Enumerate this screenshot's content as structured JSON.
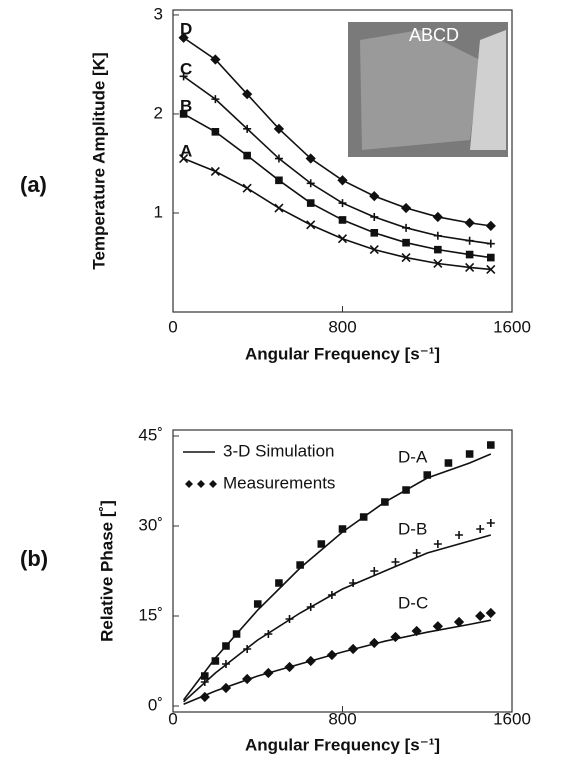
{
  "chart_data": [
    {
      "type": "line",
      "panel_label": "(a)",
      "ylabel": "Temperature Amplitude [K]",
      "xlabel": "Angular Frequency [s⁻¹]",
      "xlim": [
        0,
        1600
      ],
      "xticks": [
        0,
        800,
        1600
      ],
      "ylim": [
        0,
        3.05
      ],
      "yticks": [
        1,
        2,
        3
      ],
      "inset_label": "ABCD",
      "series": [
        {
          "name": "A",
          "color": "#111111",
          "line": true,
          "marker": "x",
          "x": [
            50,
            200,
            350,
            500,
            650,
            800,
            950,
            1100,
            1250,
            1400,
            1500
          ],
          "values": [
            1.55,
            1.42,
            1.25,
            1.05,
            0.88,
            0.74,
            0.63,
            0.55,
            0.49,
            0.45,
            0.43
          ]
        },
        {
          "name": "B",
          "color": "#111111",
          "line": true,
          "marker": "square",
          "x": [
            50,
            200,
            350,
            500,
            650,
            800,
            950,
            1100,
            1250,
            1400,
            1500
          ],
          "values": [
            2.0,
            1.82,
            1.58,
            1.33,
            1.1,
            0.93,
            0.8,
            0.7,
            0.63,
            0.58,
            0.55
          ]
        },
        {
          "name": "C",
          "color": "#111111",
          "line": true,
          "marker": "plus",
          "x": [
            50,
            200,
            350,
            500,
            650,
            800,
            950,
            1100,
            1250,
            1400,
            1500
          ],
          "values": [
            2.38,
            2.15,
            1.85,
            1.55,
            1.3,
            1.1,
            0.96,
            0.85,
            0.77,
            0.72,
            0.69
          ]
        },
        {
          "name": "D",
          "color": "#111111",
          "line": true,
          "marker": "diamond",
          "x": [
            50,
            200,
            350,
            500,
            650,
            800,
            950,
            1100,
            1250,
            1400,
            1500
          ],
          "values": [
            2.77,
            2.55,
            2.2,
            1.85,
            1.55,
            1.33,
            1.17,
            1.05,
            0.96,
            0.9,
            0.87
          ]
        }
      ]
    },
    {
      "type": "line",
      "panel_label": "(b)",
      "ylabel": "Relative Phase [˚]",
      "xlabel": "Angular Frequency [s⁻¹]",
      "xlim": [
        0,
        1600
      ],
      "xticks": [
        0,
        800,
        1600
      ],
      "ylim": [
        -1,
        46
      ],
      "yticks": [
        {
          "value": 0,
          "label": "0˚"
        },
        {
          "value": 15,
          "label": "15˚"
        },
        {
          "value": 30,
          "label": "30˚"
        },
        {
          "value": 45,
          "label": "45˚"
        }
      ],
      "legend": [
        {
          "name": "3-D Simulation",
          "line": true
        },
        {
          "name": "Measurements",
          "marker": "diamond"
        }
      ],
      "series": [
        {
          "name": "D-A",
          "color": "#111111",
          "line": true,
          "x": [
            50,
            200,
            400,
            600,
            800,
            1000,
            1200,
            1400,
            1500
          ],
          "values": [
            1,
            8,
            16,
            23,
            29,
            34,
            38,
            40.5,
            42
          ]
        },
        {
          "name": "D-B",
          "color": "#111111",
          "line": true,
          "x": [
            50,
            200,
            400,
            600,
            800,
            1000,
            1200,
            1400,
            1500
          ],
          "values": [
            0.7,
            5.5,
            11,
            15.5,
            19.5,
            22.5,
            25.5,
            27.5,
            28.5
          ]
        },
        {
          "name": "D-C",
          "color": "#111111",
          "line": true,
          "x": [
            50,
            200,
            400,
            600,
            800,
            1000,
            1200,
            1400,
            1500
          ],
          "values": [
            0.3,
            2.5,
            5,
            7,
            9,
            10.8,
            12.3,
            13.6,
            14.3
          ]
        },
        {
          "color": "#111111",
          "marker": "square",
          "x": [
            150,
            200,
            250,
            300,
            400,
            500,
            600,
            700,
            800,
            900,
            1000,
            1100,
            1200,
            1300,
            1400,
            1500
          ],
          "values": [
            5,
            7.5,
            10,
            12,
            17,
            20.5,
            23.5,
            27,
            29.5,
            31.5,
            34,
            36,
            38.5,
            40.5,
            42,
            43.5
          ]
        },
        {
          "color": "#111111",
          "marker": "plus",
          "x": [
            150,
            250,
            350,
            450,
            550,
            650,
            750,
            850,
            950,
            1050,
            1150,
            1250,
            1350,
            1450,
            1500
          ],
          "values": [
            4,
            7,
            9.5,
            12,
            14.5,
            16.5,
            18.5,
            20.5,
            22.5,
            24,
            25.5,
            27,
            28.5,
            29.5,
            30.5
          ]
        },
        {
          "color": "#111111",
          "marker": "diamond",
          "x": [
            150,
            250,
            350,
            450,
            550,
            650,
            750,
            850,
            950,
            1050,
            1150,
            1250,
            1350,
            1450,
            1500
          ],
          "values": [
            1.5,
            3,
            4.5,
            5.5,
            6.5,
            7.5,
            8.5,
            9.5,
            10.5,
            11.5,
            12.5,
            13.3,
            14,
            15,
            15.5
          ]
        }
      ]
    }
  ]
}
